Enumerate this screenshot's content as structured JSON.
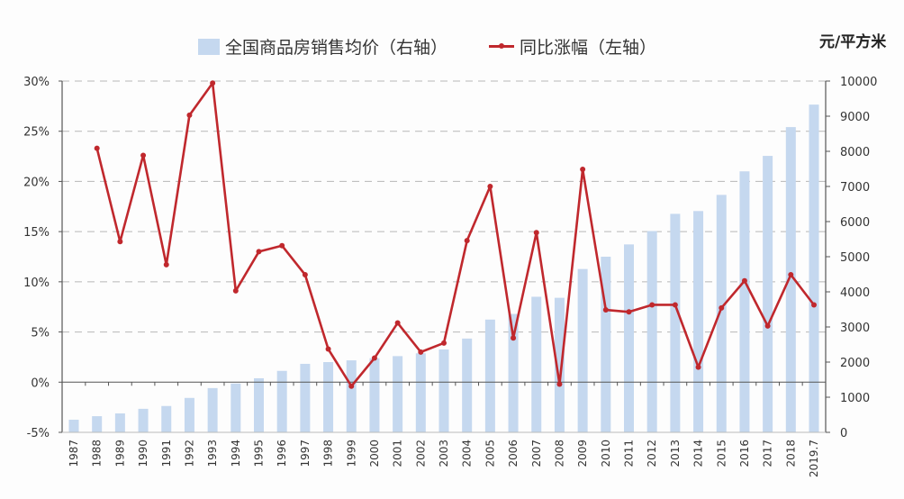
{
  "legend": {
    "bar_label": "全国商品房销售均价（右轴）",
    "line_label": "同比涨幅（左轴）"
  },
  "right_axis_unit": "元/平方米",
  "colors": {
    "bar": "#c5d8ef",
    "line": "#c0282d",
    "grid": "#9a9a9a",
    "axis": "#555555"
  },
  "chart_data": {
    "type": "bar+line",
    "title": "",
    "xlabel": "",
    "ylabel_left": "同比涨幅",
    "ylabel_right": "元/平方米",
    "categories": [
      "1987",
      "1988",
      "1989",
      "1990",
      "1991",
      "1992",
      "1993",
      "1994",
      "1995",
      "1996",
      "1997",
      "1998",
      "1999",
      "2000",
      "2001",
      "2002",
      "2003",
      "2004",
      "2005",
      "2006",
      "2007",
      "2008",
      "2009",
      "2010",
      "2011",
      "2012",
      "2013",
      "2014",
      "2015",
      "2016",
      "2017",
      "2018",
      "2019.7"
    ],
    "left_axis": {
      "ticks": [
        "-5%",
        "0%",
        "5%",
        "10%",
        "15%",
        "20%",
        "25%",
        "30%"
      ],
      "ylim": [
        -5,
        30
      ]
    },
    "right_axis": {
      "ticks": [
        "0",
        "1000",
        "2000",
        "3000",
        "4000",
        "5000",
        "6000",
        "7000",
        "8000",
        "9000",
        "10000"
      ],
      "ylim": [
        0,
        10000
      ]
    },
    "legend_position": "top",
    "grid": "dashed horizontal",
    "series": [
      {
        "name": "全国商品房销售均价（右轴）",
        "type": "bar",
        "axis": "right",
        "values": [
          360,
          460,
          540,
          670,
          750,
          980,
          1260,
          1390,
          1540,
          1750,
          1950,
          2000,
          2050,
          2110,
          2170,
          2250,
          2360,
          2670,
          3210,
          3370,
          3860,
          3830,
          4650,
          5000,
          5350,
          5730,
          6220,
          6300,
          6760,
          7430,
          7870,
          8690,
          9330
        ]
      },
      {
        "name": "同比涨幅（左轴）",
        "type": "line",
        "axis": "left",
        "values": [
          null,
          23.3,
          14.0,
          22.6,
          11.7,
          26.6,
          29.8,
          9.1,
          13.0,
          13.6,
          10.7,
          3.3,
          -0.4,
          2.4,
          5.9,
          3.0,
          3.9,
          14.1,
          19.5,
          4.4,
          14.9,
          -0.2,
          21.2,
          7.2,
          7.0,
          7.7,
          7.7,
          1.5,
          7.4,
          10.1,
          5.6,
          10.7,
          7.7
        ]
      }
    ]
  }
}
